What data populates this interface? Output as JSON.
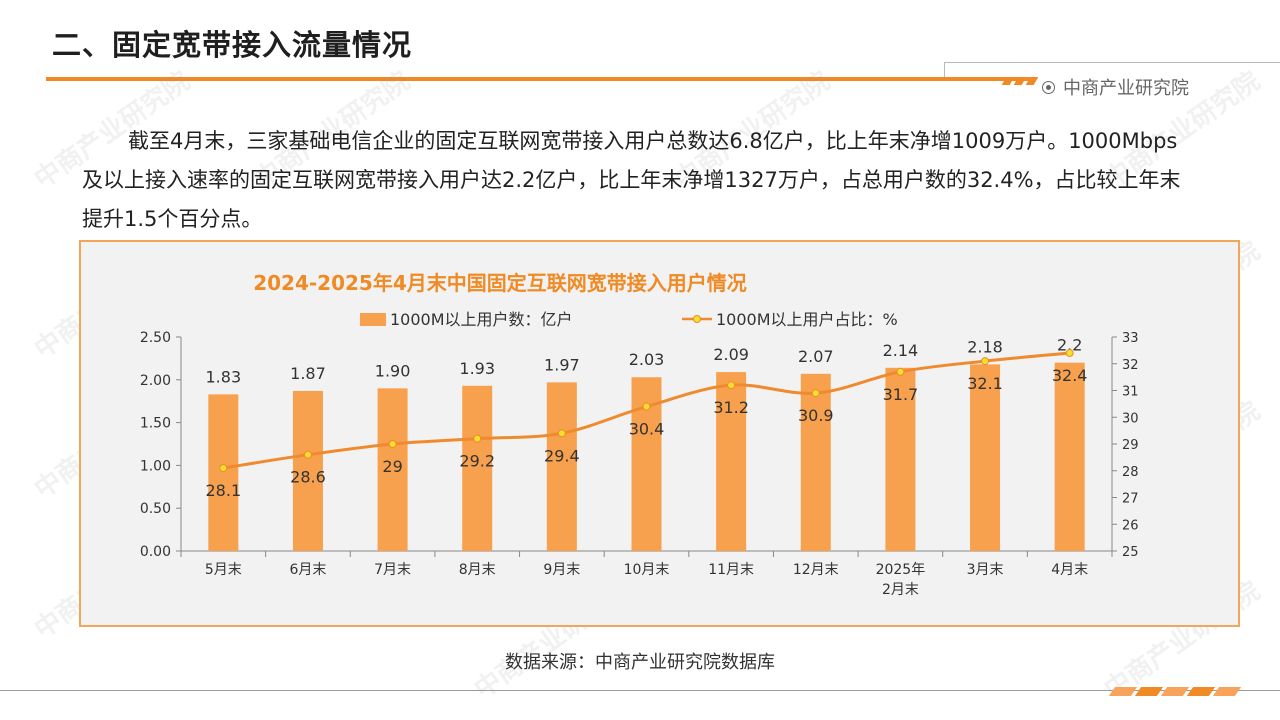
{
  "page": {
    "title": "二、固定宽带接入流量情况",
    "brand": "中商产业研究院",
    "paragraph": "截至4月末，三家基础电信企业的固定互联网宽带接入用户总数达6.8亿户，比上年末净增1009万户。1000Mbps及以上接入速率的固定互联网宽带接入用户达2.2亿户，比上年末净增1327万户，占总用户数的32.4%，占比较上年末提升1.5个百分点。",
    "source": "数据来源：中商产业研究院数据库",
    "watermark": "中商产业研究院"
  },
  "colors": {
    "accent": "#f08a24",
    "bar": "#f7a14e",
    "line": "#ef8a2f",
    "marker": "#f2e02b",
    "chart_bg": "#f2f2f2",
    "title_color": "#f08a24"
  },
  "chart_data": {
    "type": "bar",
    "title": "2024-2025年4月末中国固定互联网宽带接入用户情况",
    "categories": [
      "5月末",
      "6月末",
      "7月末",
      "8月末",
      "9月末",
      "10月末",
      "11月末",
      "12月末",
      "2025年\n2月末",
      "3月末",
      "4月末"
    ],
    "series": [
      {
        "name": "1000M以上用户数：亿户",
        "type": "bar",
        "axis": "left",
        "values": [
          1.83,
          1.87,
          1.9,
          1.93,
          1.97,
          2.03,
          2.09,
          2.07,
          2.14,
          2.18,
          2.2
        ],
        "labels": [
          "1.83",
          "1.87",
          "1.90",
          "1.93",
          "1.97",
          "2.03",
          "2.09",
          "2.07",
          "2.14",
          "2.18",
          "2.2"
        ]
      },
      {
        "name": "1000M以上用户占比：%",
        "type": "line",
        "axis": "right",
        "values": [
          28.1,
          28.6,
          29,
          29.2,
          29.4,
          30.4,
          31.2,
          30.9,
          31.7,
          32.1,
          32.4
        ],
        "labels": [
          "28.1",
          "28.6",
          "29",
          "29.2",
          "29.4",
          "30.4",
          "31.2",
          "30.9",
          "31.7",
          "32.1",
          "32.4"
        ]
      }
    ],
    "y_left": {
      "min": 0,
      "max": 2.5,
      "ticks": [
        "0.00",
        "0.50",
        "1.00",
        "1.50",
        "2.00",
        "2.50"
      ]
    },
    "y_right": {
      "min": 25,
      "max": 33,
      "ticks": [
        "25",
        "26",
        "27",
        "28",
        "29",
        "30",
        "31",
        "32",
        "33"
      ]
    },
    "legend_position": "top",
    "grid": false
  }
}
